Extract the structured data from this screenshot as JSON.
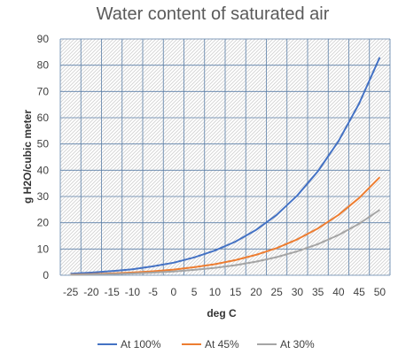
{
  "chart_data": {
    "type": "line",
    "title": "Water content of saturated air",
    "xlabel": "deg C",
    "ylabel": "g H2O/cubic meter",
    "x": [
      -25,
      -20,
      -15,
      -10,
      -5,
      0,
      5,
      10,
      15,
      20,
      25,
      30,
      35,
      40,
      45,
      50
    ],
    "xlim": [
      -25,
      50
    ],
    "ylim": [
      0,
      90
    ],
    "yticks": [
      0,
      10,
      20,
      30,
      40,
      50,
      60,
      70,
      80,
      90
    ],
    "grid": true,
    "hatched_background": true,
    "legend_position": "bottom",
    "series": [
      {
        "name": "At 100%",
        "color": "#4472c4",
        "values": [
          0.6,
          1.0,
          1.6,
          2.3,
          3.4,
          4.8,
          6.8,
          9.4,
          12.8,
          17.3,
          23.0,
          30.4,
          39.6,
          51.1,
          65.4,
          83.0
        ]
      },
      {
        "name": "At 45%",
        "color": "#ed7d31",
        "values": [
          0.27,
          0.45,
          0.72,
          1.04,
          1.53,
          2.16,
          3.06,
          4.23,
          5.76,
          7.79,
          10.35,
          13.68,
          17.82,
          23.0,
          29.43,
          37.35
        ]
      },
      {
        "name": "At 30%",
        "color": "#a5a5a5",
        "values": [
          0.18,
          0.3,
          0.48,
          0.69,
          1.02,
          1.44,
          2.04,
          2.82,
          3.84,
          5.19,
          6.9,
          9.12,
          11.88,
          15.33,
          19.62,
          24.9
        ]
      }
    ]
  }
}
